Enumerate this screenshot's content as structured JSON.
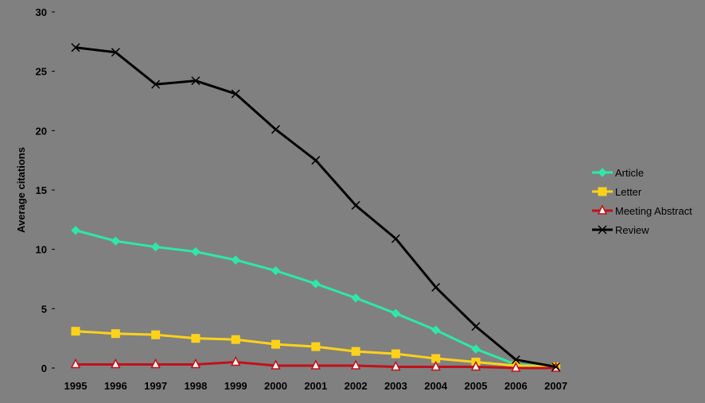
{
  "chart_data": {
    "type": "line",
    "title": "",
    "xlabel": "",
    "ylabel": "Average citations",
    "ylim": [
      0,
      30
    ],
    "yticks": [
      0,
      5,
      10,
      15,
      20,
      25,
      30
    ],
    "grid": false,
    "legend_position": "right",
    "x": [
      "1995",
      "1996",
      "1997",
      "1998",
      "1999",
      "2000",
      "2001",
      "2002",
      "2003",
      "2004",
      "2005",
      "2006",
      "2007"
    ],
    "series": [
      {
        "name": "Article",
        "color": "#2ee8a8",
        "marker": "diamond",
        "values": [
          11.6,
          10.7,
          10.2,
          9.8,
          9.1,
          8.2,
          7.1,
          5.9,
          4.6,
          3.2,
          1.6,
          0.3,
          0.1
        ]
      },
      {
        "name": "Letter",
        "color": "#ffd21a",
        "marker": "square",
        "values": [
          3.1,
          2.9,
          2.8,
          2.5,
          2.4,
          2.0,
          1.8,
          1.4,
          1.2,
          0.8,
          0.5,
          0.2,
          0.1
        ]
      },
      {
        "name": "Meeting Abstract",
        "color": "#c0111a",
        "marker": "triangle",
        "values": [
          0.3,
          0.3,
          0.3,
          0.3,
          0.5,
          0.2,
          0.2,
          0.2,
          0.1,
          0.1,
          0.1,
          0.0,
          0.0
        ]
      },
      {
        "name": "Review",
        "color": "#000000",
        "marker": "x",
        "values": [
          27.0,
          26.6,
          23.9,
          24.2,
          23.1,
          20.1,
          17.5,
          13.7,
          10.9,
          6.8,
          3.5,
          0.7,
          0.1
        ]
      }
    ]
  }
}
